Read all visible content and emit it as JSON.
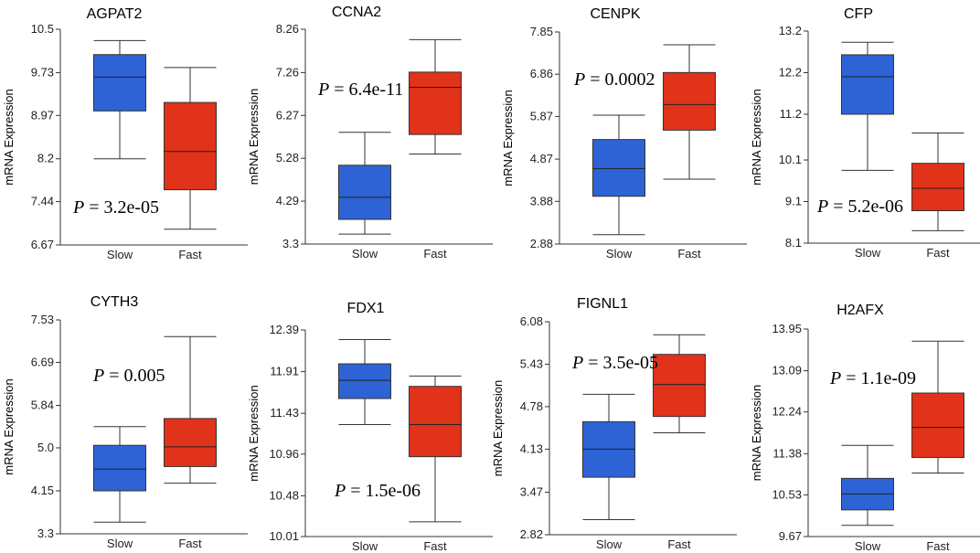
{
  "chart_data": [
    {
      "type": "box",
      "title": "AGPAT2",
      "ylabel": "mRNA Expression",
      "yticks": [
        "10.5",
        "9.73",
        "8.97",
        "8.2",
        "7.44",
        "6.67"
      ],
      "ylim": [
        6.67,
        10.5
      ],
      "categories": [
        "Slow",
        "Fast"
      ],
      "boxes": [
        {
          "name": "Slow",
          "whisker_low": 8.2,
          "q1": 9.05,
          "median": 9.65,
          "q3": 10.05,
          "whisker_high": 10.3,
          "color": "#2E63D6"
        },
        {
          "name": "Fast",
          "whisker_low": 6.95,
          "q1": 7.65,
          "median": 8.33,
          "q3": 9.2,
          "whisker_high": 9.82,
          "color": "#E1321A"
        }
      ],
      "p_label": "P",
      "p_value": "= 3.2e-05"
    },
    {
      "type": "box",
      "title": "CCNA2",
      "ylabel": "mRNA Expression",
      "yticks": [
        "8.26",
        "7.26",
        "6.27",
        "5.28",
        "4.29",
        "3.3"
      ],
      "ylim": [
        3.3,
        8.26
      ],
      "categories": [
        "Slow",
        "Fast"
      ],
      "boxes": [
        {
          "name": "Slow",
          "whisker_low": 3.53,
          "q1": 3.87,
          "median": 4.38,
          "q3": 5.12,
          "whisker_high": 5.88,
          "color": "#2E63D6"
        },
        {
          "name": "Fast",
          "whisker_low": 5.38,
          "q1": 5.83,
          "median": 6.92,
          "q3": 7.27,
          "whisker_high": 8.02,
          "color": "#E1321A"
        }
      ],
      "p_label": "P",
      "p_value": "= 6.4e-11"
    },
    {
      "type": "box",
      "title": "CENPK",
      "ylabel": "mRNA Expression",
      "yticks": [
        "7.85",
        "6.86",
        "5.87",
        "4.87",
        "3.88",
        "2.88"
      ],
      "ylim": [
        2.88,
        7.85
      ],
      "categories": [
        "Slow",
        "Fast"
      ],
      "boxes": [
        {
          "name": "Slow",
          "whisker_low": 3.1,
          "q1": 4.0,
          "median": 4.65,
          "q3": 5.33,
          "whisker_high": 5.9,
          "color": "#2E63D6"
        },
        {
          "name": "Fast",
          "whisker_low": 4.4,
          "q1": 5.55,
          "median": 6.15,
          "q3": 6.9,
          "whisker_high": 7.55,
          "color": "#E1321A"
        }
      ],
      "p_label": "P",
      "p_value": "= 0.0002"
    },
    {
      "type": "box",
      "title": "CFP",
      "ylabel": "mRNA Expression",
      "yticks": [
        "13.2",
        "12.2",
        "11.2",
        "10.1",
        "9.1",
        "8.1"
      ],
      "ylim": [
        8.1,
        13.2
      ],
      "categories": [
        "Slow",
        "Fast"
      ],
      "boxes": [
        {
          "name": "Slow",
          "whisker_low": 9.85,
          "q1": 11.2,
          "median": 12.1,
          "q3": 12.63,
          "whisker_high": 12.93,
          "color": "#2E63D6"
        },
        {
          "name": "Fast",
          "whisker_low": 8.4,
          "q1": 8.88,
          "median": 9.42,
          "q3": 10.02,
          "whisker_high": 10.75,
          "color": "#E1321A"
        }
      ],
      "p_label": "P",
      "p_value": "= 5.2e-06"
    },
    {
      "type": "box",
      "title": "CYTH3",
      "ylabel": "mRNA Expression",
      "yticks": [
        "7.53",
        "6.69",
        "5.84",
        "5.0",
        "4.15",
        "3.3"
      ],
      "ylim": [
        3.3,
        7.53
      ],
      "categories": [
        "Slow",
        "Fast"
      ],
      "boxes": [
        {
          "name": "Slow",
          "whisker_low": 3.53,
          "q1": 4.15,
          "median": 4.58,
          "q3": 5.05,
          "whisker_high": 5.42,
          "color": "#2E63D6"
        },
        {
          "name": "Fast",
          "whisker_low": 4.3,
          "q1": 4.63,
          "median": 5.02,
          "q3": 5.58,
          "whisker_high": 7.2,
          "color": "#E1321A"
        }
      ],
      "p_label": "P",
      "p_value": "= 0.005"
    },
    {
      "type": "box",
      "title": "FDX1",
      "ylabel": "mRNA Expression",
      "yticks": [
        "12.39",
        "11.91",
        "11.43",
        "10.96",
        "10.48",
        "10.01"
      ],
      "ylim": [
        10.01,
        12.39
      ],
      "categories": [
        "Slow",
        "Fast"
      ],
      "boxes": [
        {
          "name": "Slow",
          "whisker_low": 11.3,
          "q1": 11.6,
          "median": 11.81,
          "q3": 12.0,
          "whisker_high": 12.28,
          "color": "#2E63D6"
        },
        {
          "name": "Fast",
          "whisker_low": 10.18,
          "q1": 10.93,
          "median": 11.3,
          "q3": 11.74,
          "whisker_high": 11.86,
          "color": "#E1321A"
        }
      ],
      "p_label": "P",
      "p_value": "= 1.5e-06"
    },
    {
      "type": "box",
      "title": "FIGNL1",
      "ylabel": "mRNA Expression",
      "yticks": [
        "6.08",
        "5.43",
        "4.78",
        "4.13",
        "3.47",
        "2.82"
      ],
      "ylim": [
        2.82,
        6.08
      ],
      "categories": [
        "Slow",
        "Fast"
      ],
      "boxes": [
        {
          "name": "Slow",
          "whisker_low": 3.05,
          "q1": 3.7,
          "median": 4.13,
          "q3": 4.55,
          "whisker_high": 4.97,
          "color": "#2E63D6"
        },
        {
          "name": "Fast",
          "whisker_low": 4.38,
          "q1": 4.63,
          "median": 5.12,
          "q3": 5.58,
          "whisker_high": 5.88,
          "color": "#E1321A"
        }
      ],
      "p_label": "P",
      "p_value": "= 3.5e-05"
    },
    {
      "type": "box",
      "title": "H2AFX",
      "ylabel": "mRNA Expression",
      "yticks": [
        "13.95",
        "13.09",
        "12.24",
        "11.38",
        "10.53",
        "9.67"
      ],
      "ylim": [
        9.67,
        13.95
      ],
      "categories": [
        "Slow",
        "Fast"
      ],
      "boxes": [
        {
          "name": "Slow",
          "whisker_low": 9.9,
          "q1": 10.22,
          "median": 10.55,
          "q3": 10.87,
          "whisker_high": 11.55,
          "color": "#2E63D6"
        },
        {
          "name": "Fast",
          "whisker_low": 10.98,
          "q1": 11.3,
          "median": 11.92,
          "q3": 12.63,
          "whisker_high": 13.7,
          "color": "#E1321A"
        }
      ],
      "p_label": "P",
      "p_value": "= 1.1e-09"
    }
  ]
}
